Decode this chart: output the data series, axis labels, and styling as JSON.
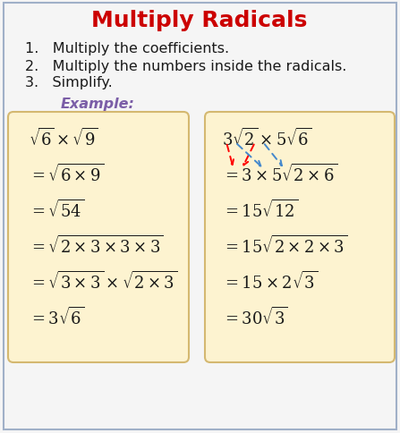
{
  "title": "Multiply Radicals",
  "title_color": "#cc0000",
  "bg_color": "#f5f5f5",
  "outer_border_color": "#a0b0c8",
  "box_color": "#fdf3d0",
  "box_edge_color": "#d4b870",
  "steps": [
    "1.   Multiply the coefficients.",
    "2.   Multiply the numbers inside the radicals.",
    "3.   Simplify."
  ],
  "example_label": "Example:",
  "example_color": "#7b5ea7",
  "left_lines": [
    "$\\sqrt{6}\\times\\sqrt{9}$",
    "$=\\sqrt{6\\times9}$",
    "$=\\sqrt{54}$",
    "$=\\sqrt{2\\times3\\times3\\times3}$",
    "$=\\sqrt{3\\times3}\\times\\sqrt{2\\times3}$",
    "$=3\\sqrt{6}$"
  ],
  "right_lines": [
    "$3\\sqrt{2}\\times5\\sqrt{6}$",
    "$=3\\times5\\sqrt{2\\times6}$",
    "$=15\\sqrt{12}$",
    "$=15\\sqrt{2\\times2\\times3}$",
    "$=15\\times2\\sqrt{3}$",
    "$=30\\sqrt{3}$"
  ],
  "math_color": "#1a1a1a",
  "step_color": "#1a1a1a",
  "step_fontsize": 11.5,
  "math_fontsize": 13,
  "title_fontsize": 18
}
